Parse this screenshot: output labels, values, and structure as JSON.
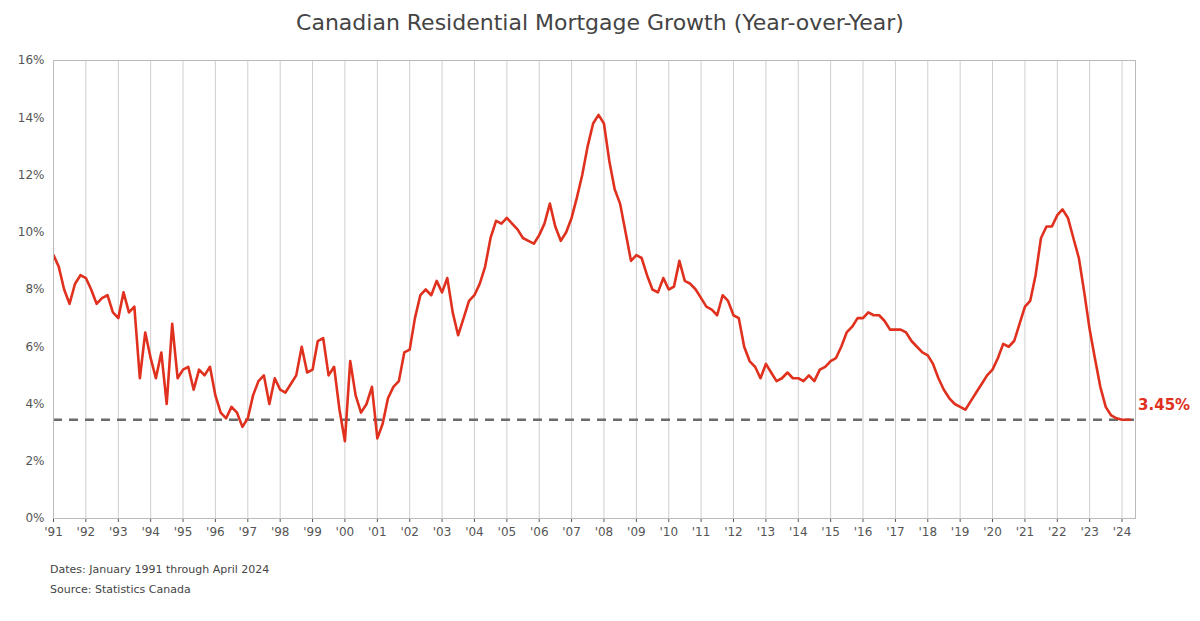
{
  "chart_data": {
    "type": "line",
    "title": "Canadian Residential Mortgage Growth (Year-over-Year)",
    "notes": [
      "Dates: January 1991 through April 2024",
      "Source: Statistics Canada"
    ],
    "grid": "x",
    "xlim": [
      "1991-01",
      "2024-06"
    ],
    "xticks": [
      {
        "value": "1991-01",
        "label": "'91"
      },
      {
        "value": "1992-01",
        "label": "'92"
      },
      {
        "value": "1993-01",
        "label": "'93"
      },
      {
        "value": "1994-01",
        "label": "'94"
      },
      {
        "value": "1995-01",
        "label": "'95"
      },
      {
        "value": "1996-01",
        "label": "'96"
      },
      {
        "value": "1997-01",
        "label": "'97"
      },
      {
        "value": "1998-01",
        "label": "'98"
      },
      {
        "value": "1999-01",
        "label": "'99"
      },
      {
        "value": "2000-01",
        "label": "'00"
      },
      {
        "value": "2001-01",
        "label": "'01"
      },
      {
        "value": "2002-01",
        "label": "'02"
      },
      {
        "value": "2003-01",
        "label": "'03"
      },
      {
        "value": "2004-01",
        "label": "'04"
      },
      {
        "value": "2005-01",
        "label": "'05"
      },
      {
        "value": "2006-01",
        "label": "'06"
      },
      {
        "value": "2007-01",
        "label": "'07"
      },
      {
        "value": "2008-01",
        "label": "'08"
      },
      {
        "value": "2009-01",
        "label": "'09"
      },
      {
        "value": "2010-01",
        "label": "'10"
      },
      {
        "value": "2011-01",
        "label": "'11"
      },
      {
        "value": "2012-01",
        "label": "'12"
      },
      {
        "value": "2013-01",
        "label": "'13"
      },
      {
        "value": "2014-01",
        "label": "'14"
      },
      {
        "value": "2015-01",
        "label": "'15"
      },
      {
        "value": "2016-01",
        "label": "'16"
      },
      {
        "value": "2017-01",
        "label": "'17"
      },
      {
        "value": "2018-01",
        "label": "'18"
      },
      {
        "value": "2019-01",
        "label": "'19"
      },
      {
        "value": "2020-01",
        "label": "'20"
      },
      {
        "value": "2021-01",
        "label": "'21"
      },
      {
        "value": "2022-01",
        "label": "'22"
      },
      {
        "value": "2023-01",
        "label": "'23"
      },
      {
        "value": "2024-01",
        "label": "'24"
      }
    ],
    "ylim": [
      0,
      16
    ],
    "yticks": [
      {
        "value": 0,
        "label": "0%"
      },
      {
        "value": 2,
        "label": "2%"
      },
      {
        "value": 4,
        "label": "4%"
      },
      {
        "value": 6,
        "label": "6%"
      },
      {
        "value": 8,
        "label": "8%"
      },
      {
        "value": 10,
        "label": "10%"
      },
      {
        "value": 12,
        "label": "12%"
      },
      {
        "value": 14,
        "label": "14%"
      },
      {
        "value": 16,
        "label": "16%"
      }
    ],
    "x": [
      "1991-01",
      "1991-03",
      "1991-05",
      "1991-07",
      "1991-09",
      "1991-11",
      "1992-01",
      "1992-03",
      "1992-05",
      "1992-07",
      "1992-09",
      "1992-11",
      "1993-01",
      "1993-03",
      "1993-05",
      "1993-07",
      "1993-09",
      "1993-11",
      "1994-01",
      "1994-03",
      "1994-05",
      "1994-07",
      "1994-09",
      "1994-11",
      "1995-01",
      "1995-03",
      "1995-05",
      "1995-07",
      "1995-09",
      "1995-11",
      "1996-01",
      "1996-03",
      "1996-05",
      "1996-07",
      "1996-09",
      "1996-11",
      "1997-01",
      "1997-03",
      "1997-05",
      "1997-07",
      "1997-09",
      "1997-11",
      "1998-01",
      "1998-03",
      "1998-05",
      "1998-07",
      "1998-09",
      "1998-11",
      "1999-01",
      "1999-03",
      "1999-05",
      "1999-07",
      "1999-09",
      "1999-11",
      "2000-01",
      "2000-03",
      "2000-05",
      "2000-07",
      "2000-09",
      "2000-11",
      "2001-01",
      "2001-03",
      "2001-05",
      "2001-07",
      "2001-09",
      "2001-11",
      "2002-01",
      "2002-03",
      "2002-05",
      "2002-07",
      "2002-09",
      "2002-11",
      "2003-01",
      "2003-03",
      "2003-05",
      "2003-07",
      "2003-09",
      "2003-11",
      "2004-01",
      "2004-03",
      "2004-05",
      "2004-07",
      "2004-09",
      "2004-11",
      "2005-01",
      "2005-03",
      "2005-05",
      "2005-07",
      "2005-09",
      "2005-11",
      "2006-01",
      "2006-03",
      "2006-05",
      "2006-07",
      "2006-09",
      "2006-11",
      "2007-01",
      "2007-03",
      "2007-05",
      "2007-07",
      "2007-09",
      "2007-11",
      "2008-01",
      "2008-03",
      "2008-05",
      "2008-07",
      "2008-09",
      "2008-11",
      "2009-01",
      "2009-03",
      "2009-05",
      "2009-07",
      "2009-09",
      "2009-11",
      "2010-01",
      "2010-03",
      "2010-05",
      "2010-07",
      "2010-09",
      "2010-11",
      "2011-01",
      "2011-03",
      "2011-05",
      "2011-07",
      "2011-09",
      "2011-11",
      "2012-01",
      "2012-03",
      "2012-05",
      "2012-07",
      "2012-09",
      "2012-11",
      "2013-01",
      "2013-03",
      "2013-05",
      "2013-07",
      "2013-09",
      "2013-11",
      "2014-01",
      "2014-03",
      "2014-05",
      "2014-07",
      "2014-09",
      "2014-11",
      "2015-01",
      "2015-03",
      "2015-05",
      "2015-07",
      "2015-09",
      "2015-11",
      "2016-01",
      "2016-03",
      "2016-05",
      "2016-07",
      "2016-09",
      "2016-11",
      "2017-01",
      "2017-03",
      "2017-05",
      "2017-07",
      "2017-09",
      "2017-11",
      "2018-01",
      "2018-03",
      "2018-05",
      "2018-07",
      "2018-09",
      "2018-11",
      "2019-01",
      "2019-03",
      "2019-05",
      "2019-07",
      "2019-09",
      "2019-11",
      "2020-01",
      "2020-03",
      "2020-05",
      "2020-07",
      "2020-09",
      "2020-11",
      "2021-01",
      "2021-03",
      "2021-05",
      "2021-07",
      "2021-09",
      "2021-11",
      "2022-01",
      "2022-03",
      "2022-05",
      "2022-07",
      "2022-09",
      "2022-11",
      "2023-01",
      "2023-03",
      "2023-05",
      "2023-07",
      "2023-09",
      "2023-11",
      "2024-01",
      "2024-03",
      "2024-04"
    ],
    "series": [
      {
        "name": "Canadian Residential Mortgage Growth (Year-over-Year)",
        "color": "#e0301e",
        "line_style": "solid",
        "values": [
          9.2,
          8.8,
          8.0,
          7.5,
          8.2,
          8.5,
          8.4,
          8.0,
          7.5,
          7.7,
          7.8,
          7.2,
          7.0,
          7.9,
          7.2,
          7.4,
          4.9,
          6.5,
          5.6,
          4.9,
          5.8,
          4.0,
          6.8,
          4.9,
          5.2,
          5.3,
          4.5,
          5.2,
          5.0,
          5.3,
          4.3,
          3.7,
          3.5,
          3.9,
          3.7,
          3.2,
          3.5,
          4.3,
          4.8,
          5.0,
          4.0,
          4.9,
          4.5,
          4.4,
          4.7,
          5.0,
          6.0,
          5.1,
          5.2,
          6.2,
          6.3,
          5.0,
          5.3,
          3.8,
          2.7,
          5.5,
          4.3,
          3.7,
          4.0,
          4.6,
          2.8,
          3.3,
          4.2,
          4.6,
          4.8,
          5.8,
          5.9,
          7.0,
          7.8,
          8.0,
          7.8,
          8.3,
          7.9,
          8.4,
          7.2,
          6.4,
          7.0,
          7.6,
          7.8,
          8.2,
          8.8,
          9.8,
          10.4,
          10.3,
          10.5,
          10.3,
          10.1,
          9.8,
          9.7,
          9.6,
          9.9,
          10.3,
          11.0,
          10.2,
          9.7,
          10.0,
          10.5,
          11.2,
          12.0,
          13.0,
          13.8,
          14.1,
          13.8,
          12.5,
          11.5,
          11.0,
          10.0,
          9.0,
          9.2,
          9.1,
          8.5,
          8.0,
          7.9,
          8.4,
          8.0,
          8.1,
          9.0,
          8.3,
          8.2,
          8.0,
          7.7,
          7.4,
          7.3,
          7.1,
          7.8,
          7.6,
          7.1,
          7.0,
          6.0,
          5.5,
          5.3,
          4.9,
          5.4,
          5.1,
          4.8,
          4.9,
          5.1,
          4.9,
          4.9,
          4.8,
          5.0,
          4.8,
          5.2,
          5.3,
          5.5,
          5.6,
          6.0,
          6.5,
          6.7,
          7.0,
          7.0,
          7.2,
          7.1,
          7.1,
          6.9,
          6.6,
          6.6,
          6.6,
          6.5,
          6.2,
          6.0,
          5.8,
          5.7,
          5.4,
          4.9,
          4.5,
          4.2,
          4.0,
          3.9,
          3.8,
          4.1,
          4.4,
          4.7,
          5.0,
          5.2,
          5.6,
          6.1,
          6.0,
          6.2,
          6.8,
          7.4,
          7.6,
          8.5,
          9.8,
          10.2,
          10.2,
          10.6,
          10.8,
          10.5,
          9.8,
          9.1,
          7.9,
          6.6,
          5.6,
          4.6,
          3.9,
          3.6,
          3.5,
          3.45,
          3.45,
          3.45
        ]
      }
    ],
    "reference_line": {
      "value": 3.45,
      "label": "3.45%",
      "color": "#6b6b6b",
      "line_style": "dashed"
    }
  }
}
